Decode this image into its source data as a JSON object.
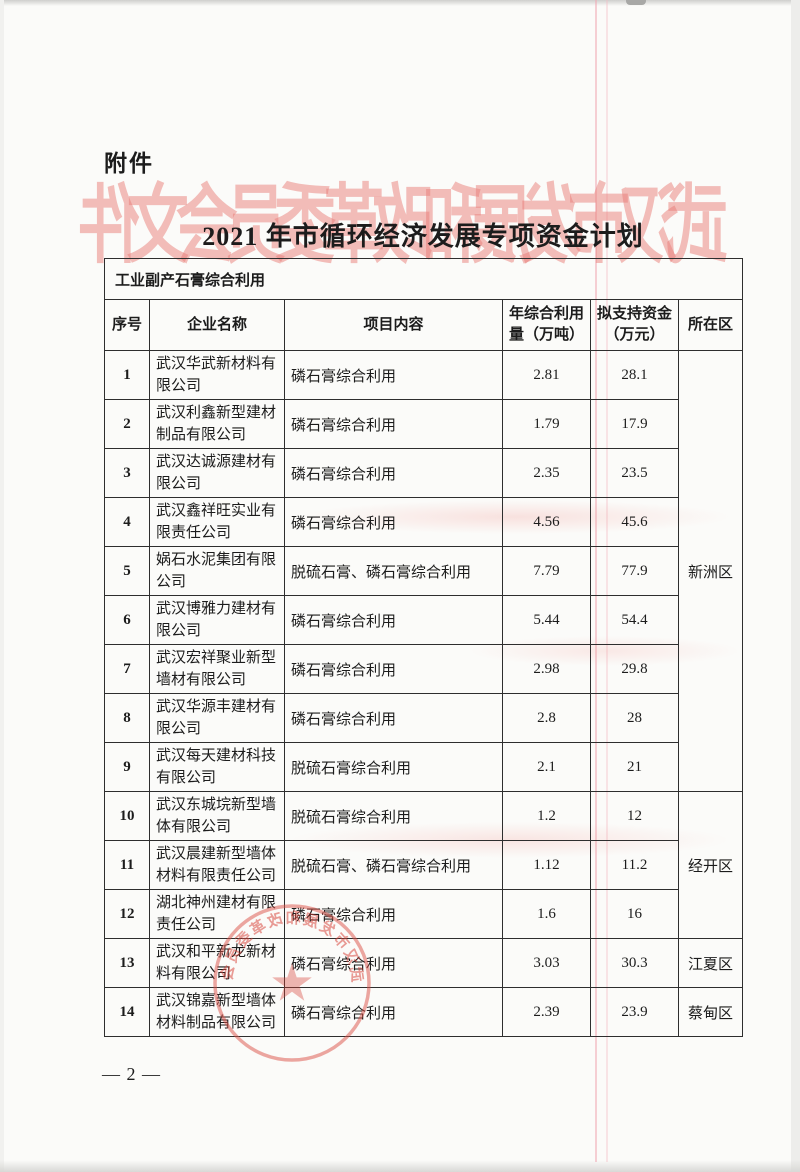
{
  "page": {
    "attachment_label": "附件",
    "title": "2021 年市循环经济发展专项资金计划",
    "watermark_text": "武汉市发展和改革委员会文件",
    "stamp_text": "武汉市发展和改革委员会",
    "page_number": "— 2 —",
    "colors": {
      "stamp_red": "#d9453a",
      "watermark_pink": "#e97d77",
      "table_border": "#2e2e2e",
      "paper": "#fbfbf9"
    }
  },
  "table": {
    "section_header": "工业副产石膏综合利用",
    "columns": [
      "序号",
      "企业名称",
      "项目内容",
      "年综合利用量（万吨）",
      "拟支持资金（万元）",
      "所在区"
    ],
    "rows": [
      {
        "seq": "1",
        "company": "武汉华武新材料有限公司",
        "project": "磷石膏综合利用",
        "amount": "2.81",
        "fund": "28.1"
      },
      {
        "seq": "2",
        "company": "武汉利鑫新型建材制品有限公司",
        "project": "磷石膏综合利用",
        "amount": "1.79",
        "fund": "17.9"
      },
      {
        "seq": "3",
        "company": "武汉达诚源建材有限公司",
        "project": "磷石膏综合利用",
        "amount": "2.35",
        "fund": "23.5"
      },
      {
        "seq": "4",
        "company": "武汉鑫祥旺实业有限责任公司",
        "project": "磷石膏综合利用",
        "amount": "4.56",
        "fund": "45.6"
      },
      {
        "seq": "5",
        "company": "娲石水泥集团有限公司",
        "project": "脱硫石膏、磷石膏综合利用",
        "amount": "7.79",
        "fund": "77.9"
      },
      {
        "seq": "6",
        "company": "武汉博雅力建材有限公司",
        "project": "磷石膏综合利用",
        "amount": "5.44",
        "fund": "54.4"
      },
      {
        "seq": "7",
        "company": "武汉宏祥聚业新型墙材有限公司",
        "project": "磷石膏综合利用",
        "amount": "2.98",
        "fund": "29.8"
      },
      {
        "seq": "8",
        "company": "武汉华源丰建材有限公司",
        "project": "磷石膏综合利用",
        "amount": "2.8",
        "fund": "28"
      },
      {
        "seq": "9",
        "company": "武汉每天建材科技有限公司",
        "project": "脱硫石膏综合利用",
        "amount": "2.1",
        "fund": "21"
      },
      {
        "seq": "10",
        "company": "武汉东城垸新型墙体有限公司",
        "project": "脱硫石膏综合利用",
        "amount": "1.2",
        "fund": "12"
      },
      {
        "seq": "11",
        "company": "武汉晨建新型墙体材料有限责任公司",
        "project": "脱硫石膏、磷石膏综合利用",
        "amount": "1.12",
        "fund": "11.2"
      },
      {
        "seq": "12",
        "company": "湖北神州建材有限责任公司",
        "project": "磷石膏综合利用",
        "amount": "1.6",
        "fund": "16"
      },
      {
        "seq": "13",
        "company": "武汉和平新龙新材料有限公司",
        "project": "磷石膏综合利用",
        "amount": "3.03",
        "fund": "30.3"
      },
      {
        "seq": "14",
        "company": "武汉锦嘉新型墙体材料制品有限公司",
        "project": "磷石膏综合利用",
        "amount": "2.39",
        "fund": "23.9"
      }
    ],
    "district_groups": [
      {
        "label": "新洲区",
        "rows": 9
      },
      {
        "label": "经开区",
        "rows": 3
      },
      {
        "label": "江夏区",
        "rows": 1
      },
      {
        "label": "蔡甸区",
        "rows": 1
      }
    ]
  }
}
